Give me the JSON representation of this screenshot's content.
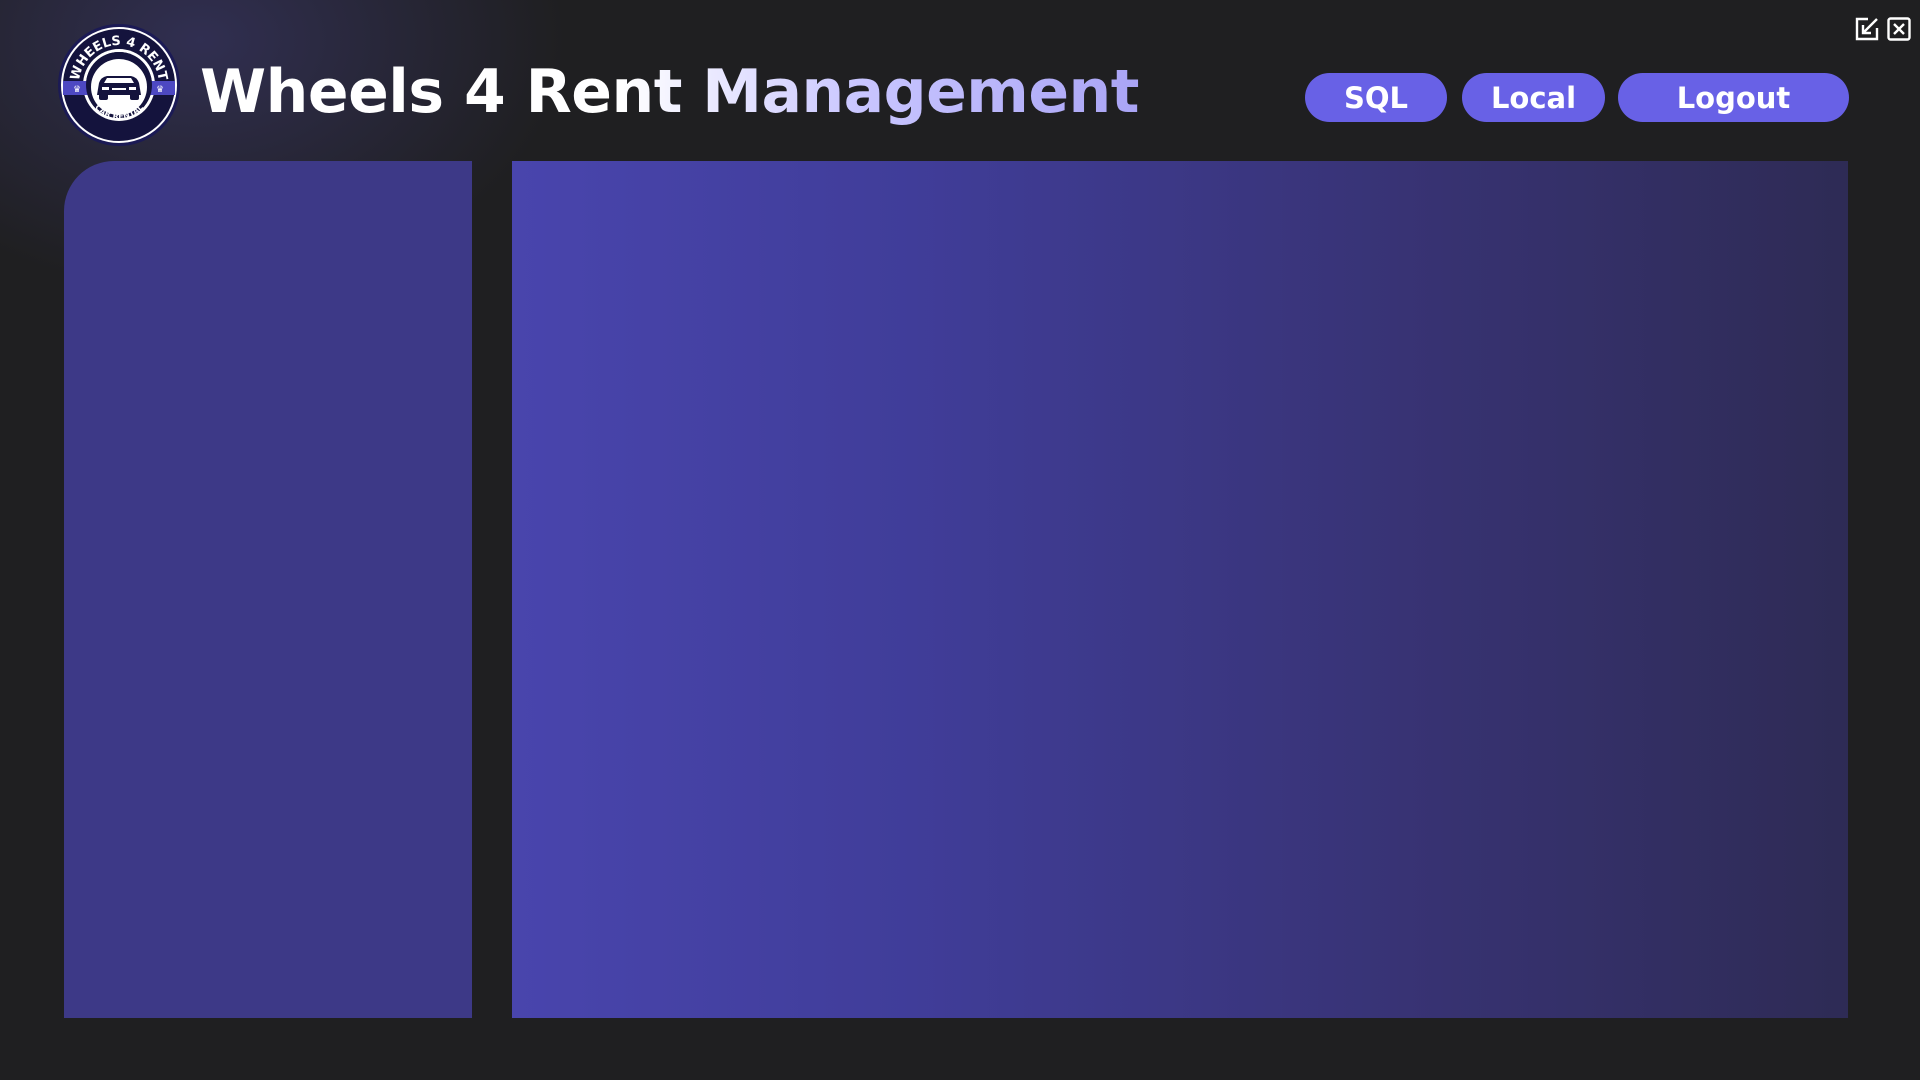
{
  "app": {
    "title": "Wheels 4 Rent Management",
    "logo": {
      "top_text": "WHEELS 4 RENT",
      "bottom_text": "CAR RENTAL",
      "icon": "car-icon"
    }
  },
  "window_controls": {
    "minimize_icon": "minimize-arrow-icon",
    "close_icon": "close-icon"
  },
  "nav": {
    "sql_label": "SQL",
    "local_label": "Local",
    "logout_label": "Logout"
  },
  "colors": {
    "background": "#1f1f21",
    "button": "#6861e6",
    "sidebar_panel": "#3d3987",
    "main_panel_start": "#4945ad",
    "main_panel_end": "#2e2b55"
  }
}
